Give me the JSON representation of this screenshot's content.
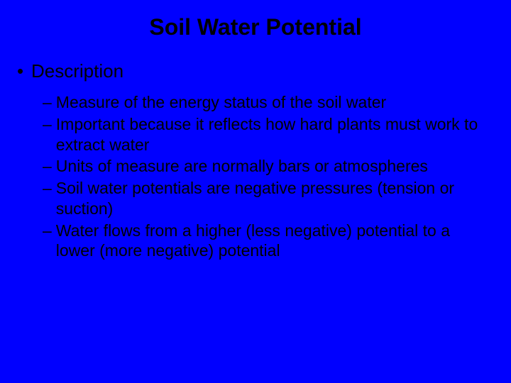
{
  "background_color": "#0000ff",
  "title_color": "#000000",
  "text_color": "#000000",
  "title_fontsize": 32,
  "level1_fontsize": 26,
  "level2_fontsize": 23,
  "title": "Soil Water Potential",
  "level1": {
    "bullet": "•",
    "text": "Description"
  },
  "level2_items": [
    "Measure of the energy status of the soil water",
    "Important because it reflects how hard plants must work to extract water",
    "Units of measure are normally bars or atmospheres",
    "Soil water potentials are negative pressures (tension or suction)",
    "Water flows from a higher (less negative) potential to a lower (more negative) potential"
  ],
  "level2_dash": "–"
}
